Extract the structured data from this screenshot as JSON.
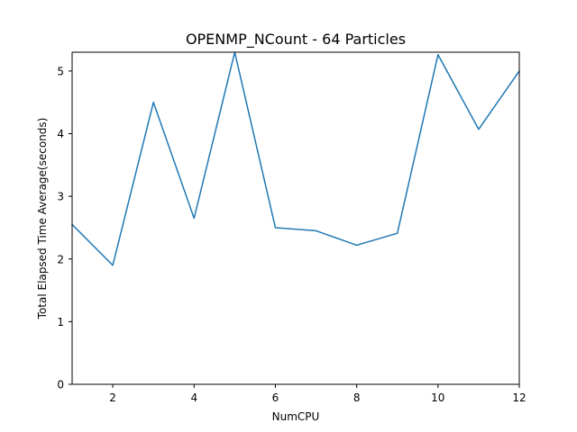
{
  "chart_data": {
    "type": "line",
    "title": "OPENMP_NCount - 64 Particles",
    "xlabel": "NumCPU",
    "ylabel": "Total Elapsed Time Average(seconds)",
    "xlim": [
      1,
      12
    ],
    "ylim": [
      0,
      5.3
    ],
    "xticks": [
      2,
      4,
      6,
      8,
      10,
      12
    ],
    "yticks": [
      0,
      1,
      2,
      3,
      4,
      5
    ],
    "grid": false,
    "line_color": "#1f77b4",
    "series": [
      {
        "x": [
          1,
          2,
          3,
          4,
          5,
          6,
          7,
          8,
          9,
          10,
          11,
          12
        ],
        "values": [
          2.55,
          1.9,
          4.5,
          2.65,
          5.3,
          2.5,
          2.45,
          2.22,
          2.41,
          5.26,
          4.07,
          5.0
        ]
      }
    ]
  }
}
